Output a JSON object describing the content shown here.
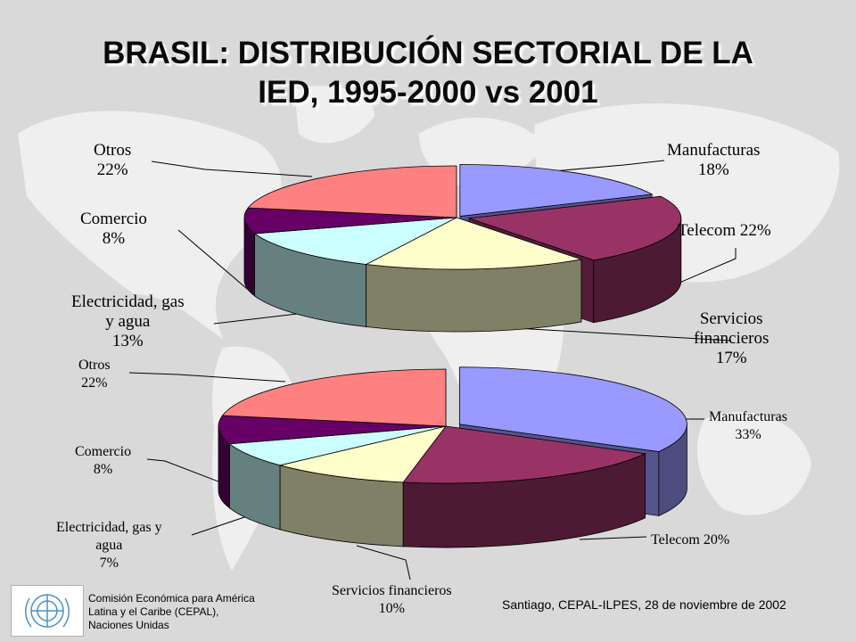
{
  "slide": {
    "title_line1": "BRASIL: DISTRIBUCIÓN SECTORIAL DE LA",
    "title_line2": "IED, 1995-2000 vs 2001"
  },
  "footer": {
    "org_line1": "Comisión Económica para América",
    "org_line2": "Latina y el Caribe (CEPAL),",
    "org_line3": "Naciones Unidas",
    "date": "Santiago, CEPAL-ILPES, 28 de noviembre de 2002"
  },
  "colors": {
    "Manufacturas": "#9999ff",
    "Telecom": "#993366",
    "Servicios financieros": "#ffffcc",
    "Electricidad, gas y agua": "#ccffff",
    "Comercio": "#660066",
    "Otros": "#ff8080",
    "background": "#d9d9d9",
    "map": "#efefef"
  },
  "chart_data": [
    {
      "type": "pie",
      "categories": [
        "Manufacturas",
        "Telecom",
        "Servicios financieros",
        "Electricidad, gas y agua",
        "Comercio",
        "Otros"
      ],
      "values": [
        18,
        22,
        17,
        13,
        8,
        22
      ],
      "labels": {
        "Manufacturas": [
          "Manufacturas",
          "18%"
        ],
        "Telecom": [
          "Telecom 22%"
        ],
        "Servicios financieros": [
          "Servicios",
          "financieros",
          "17%"
        ],
        "Electricidad, gas y agua": [
          "Electricidad, gas",
          "y agua",
          "13%"
        ],
        "Comercio": [
          "Comercio",
          "8%"
        ],
        "Otros": [
          "Otros",
          "22%"
        ]
      }
    },
    {
      "type": "pie",
      "categories": [
        "Manufacturas",
        "Telecom",
        "Servicios financieros",
        "Electricidad, gas y agua",
        "Comercio",
        "Otros"
      ],
      "values": [
        33,
        20,
        10,
        7,
        8,
        22
      ],
      "labels": {
        "Manufacturas": [
          "Manufacturas",
          "33%"
        ],
        "Telecom": [
          "Telecom 20%"
        ],
        "Servicios financieros": [
          "Servicios financieros",
          "10%"
        ],
        "Electricidad, gas y agua": [
          "Electricidad, gas y",
          "agua",
          "7%"
        ],
        "Comercio": [
          "Comercio",
          "8%"
        ],
        "Otros": [
          "Otros",
          "22%"
        ]
      }
    }
  ]
}
